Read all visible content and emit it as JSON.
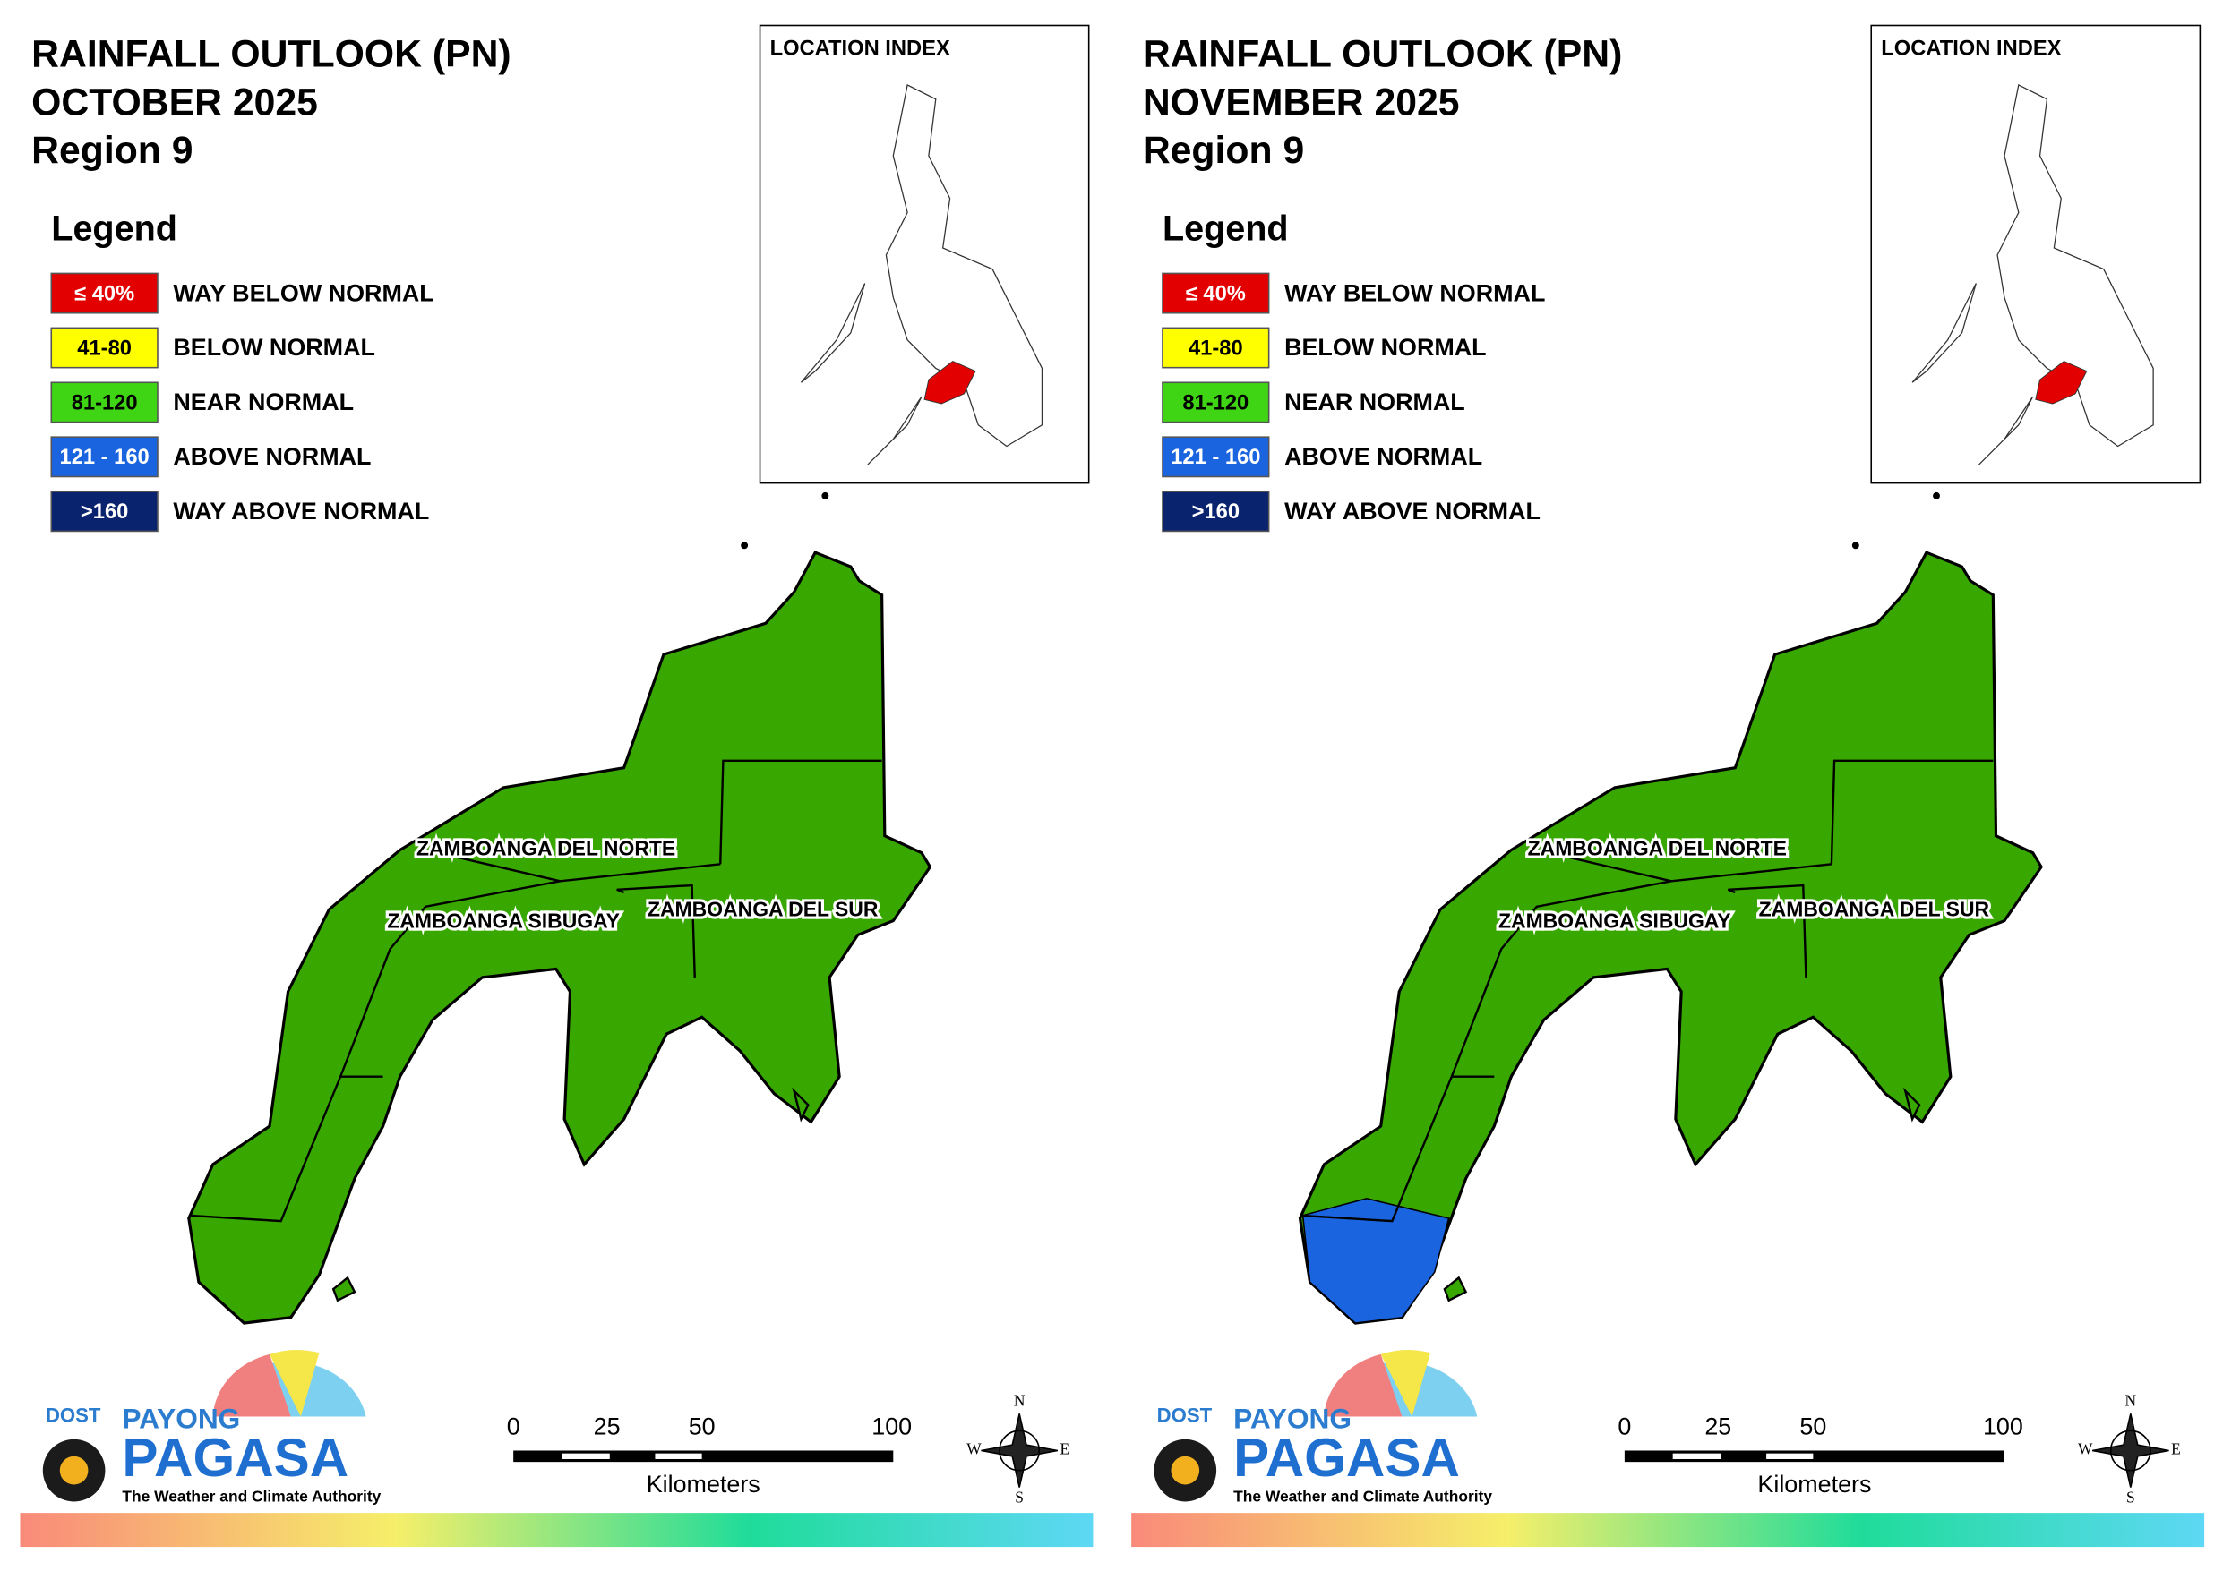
{
  "panels": [
    {
      "title_lines": [
        "RAINFALL OUTLOOK (PN)",
        "OCTOBER 2025",
        "Region 9"
      ],
      "legend": {
        "title": "Legend",
        "items": [
          {
            "label": "≤ 40%",
            "description": "WAY BELOW NORMAL",
            "color": "#e30000"
          },
          {
            "label": "41-80",
            "description": "BELOW NORMAL",
            "color": "#ffff00"
          },
          {
            "label": "81-120",
            "description": "NEAR NORMAL",
            "color": "#3fd414"
          },
          {
            "label": "121 - 160",
            "description": "ABOVE NORMAL",
            "color": "#1a64e0"
          },
          {
            "label": ">160",
            "description": "WAY ABOVE NORMAL",
            "color": "#0a236e"
          }
        ]
      },
      "location_index": "LOCATION INDEX",
      "regions": [
        "ZAMBOANGA DEL NORTE",
        "ZAMBOANGA SIBUGAY",
        "ZAMBOANGA DEL SUR"
      ],
      "scale": {
        "labels": [
          "0",
          "25",
          "50",
          "100"
        ],
        "unit": "Kilometers"
      },
      "compass": [
        "N",
        "E",
        "S",
        "W"
      ],
      "logo": {
        "agency": "DOST",
        "line1": "PAYONG",
        "line2": "PAGASA",
        "tagline": "The Weather and Climate Authority"
      }
    },
    {
      "title_lines": [
        "RAINFALL OUTLOOK (PN)",
        "NOVEMBER 2025",
        "Region 9"
      ],
      "legend": {
        "title": "Legend",
        "items": [
          {
            "label": "≤ 40%",
            "description": "WAY BELOW NORMAL",
            "color": "#e30000"
          },
          {
            "label": "41-80",
            "description": "BELOW NORMAL",
            "color": "#ffff00"
          },
          {
            "label": "81-120",
            "description": "NEAR NORMAL",
            "color": "#3fd414"
          },
          {
            "label": "121 - 160",
            "description": "ABOVE NORMAL",
            "color": "#1a64e0"
          },
          {
            "label": ">160",
            "description": "WAY ABOVE NORMAL",
            "color": "#0a236e"
          }
        ]
      },
      "location_index": "LOCATION INDEX",
      "regions": [
        "ZAMBOANGA DEL NORTE",
        "ZAMBOANGA SIBUGAY",
        "ZAMBOANGA DEL SUR"
      ],
      "scale": {
        "labels": [
          "0",
          "25",
          "50",
          "100"
        ],
        "unit": "Kilometers"
      },
      "compass": [
        "N",
        "E",
        "S",
        "W"
      ],
      "logo": {
        "agency": "DOST",
        "line1": "PAYONG",
        "line2": "PAGASA",
        "tagline": "The Weather and Climate Authority"
      }
    }
  ]
}
